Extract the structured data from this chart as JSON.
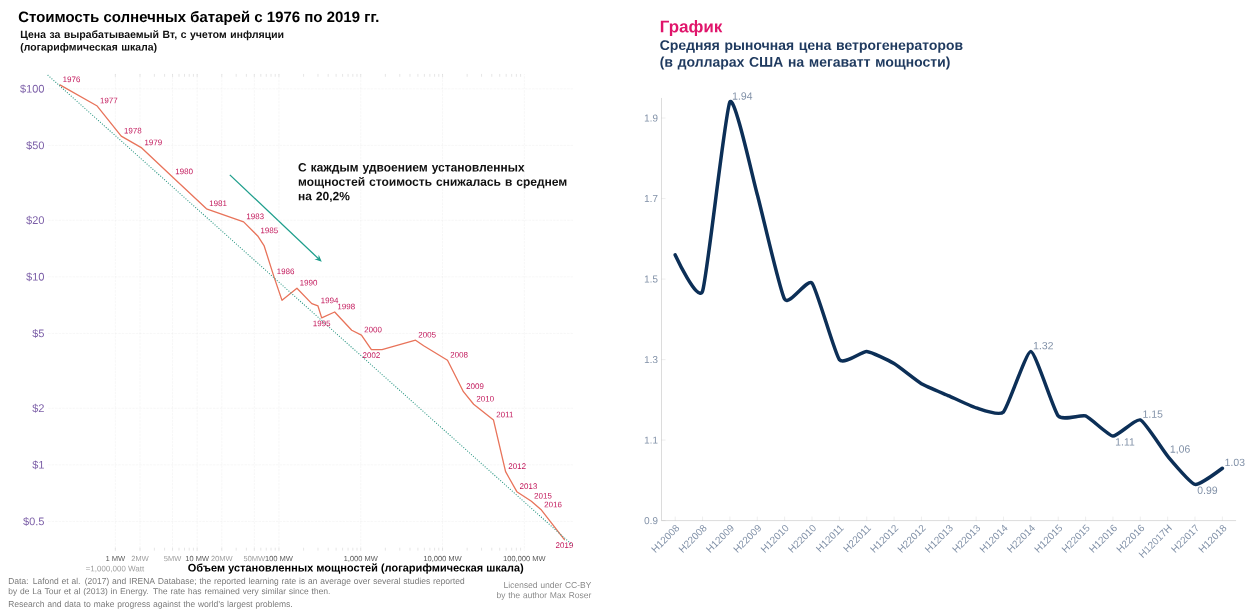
{
  "chart_data": [
    {
      "type": "line",
      "title": "Стоимость солнечных батарей с 1976 по 2019 гг.",
      "subtitle": "Цена за вырабатываемый Вт, с учетом инфляции (логарифмическая шкала)",
      "xlabel": "Объем установленных мощностей (логарифмическая шкала)",
      "log": "xy",
      "grid": true,
      "xlim": [
        0.15,
        400000
      ],
      "ylim": [
        0.35,
        120
      ],
      "xticks": [
        {
          "value": 1,
          "label": "1 MW"
        },
        {
          "value": 2,
          "label": "2MW"
        },
        {
          "value": 5,
          "label": "5MW"
        },
        {
          "value": 10,
          "label": "10 MW"
        },
        {
          "value": 20,
          "label": "20MW"
        },
        {
          "value": 50,
          "label": "50MW"
        },
        {
          "value": 100,
          "label": "100 MW"
        },
        {
          "value": 1000,
          "label": "1,000 MW"
        },
        {
          "value": 10000,
          "label": "10,000 MW"
        },
        {
          "value": 100000,
          "label": "100,000 MW"
        }
      ],
      "yticks": [
        {
          "value": 0.5,
          "label": "$0.5"
        },
        {
          "value": 1,
          "label": "$1"
        },
        {
          "value": 2,
          "label": "$2"
        },
        {
          "value": 5,
          "label": "$5"
        },
        {
          "value": 10,
          "label": "$10"
        },
        {
          "value": 20,
          "label": "$20"
        },
        {
          "value": 50,
          "label": "$50"
        },
        {
          "value": 100,
          "label": "$100"
        }
      ],
      "series": [
        {
          "color": "#e8735a",
          "x": [
            0.21,
            0.6,
            1.18,
            2.1,
            5,
            13,
            37,
            55,
            66,
            87,
            109,
            166,
            252,
            300,
            333,
            480,
            776,
            1020,
            1350,
            1820,
            4680,
            5880,
            11500,
            18000,
            24000,
            42000,
            59000,
            81000,
            122000,
            162000,
            309000
          ],
          "values": [
            105,
            81,
            56,
            48.5,
            34,
            23,
            19.6,
            16.5,
            14.6,
            10,
            7.5,
            8.7,
            7.2,
            7.0,
            6.05,
            6.5,
            5.2,
            4.9,
            4.1,
            4.1,
            4.6,
            4.3,
            3.6,
            2.45,
            2.1,
            1.73,
            0.92,
            0.72,
            0.64,
            0.575,
            0.4
          ]
        },
        {
          "type": "line",
          "color": "#3a9e8c",
          "line_style": "dotted",
          "x": [
            0.15,
            400000
          ],
          "values": [
            118,
            0.37
          ]
        }
      ],
      "annotations": [
        "С каждым удвоением установленных мощностей стоимость снижалась в среднем на 20,2%",
        "=1,000,000 Watt",
        "Data: Lafond et al. (2017) and IRENA Database; the reported learning rate is an average over several studies reported by de La Tour et al (2013) in Energy. The rate has remained very similar since then.",
        "Research and data to make progress against the world’s largest problems.",
        "Licensed under CC-BY by the author Max Roser",
        {
          "text": "1976",
          "x": 0.21,
          "y": 105
        },
        {
          "text": "1977",
          "x": 0.6,
          "y": 81
        },
        {
          "text": "1978",
          "x": 1.18,
          "y": 56
        },
        {
          "text": "1979",
          "x": 2.1,
          "y": 48.5
        },
        {
          "text": "1980",
          "x": 5,
          "y": 34
        },
        {
          "text": "1981",
          "x": 13,
          "y": 23
        },
        {
          "text": "1983",
          "x": 37,
          "y": 19.6
        },
        {
          "text": "1985",
          "x": 55,
          "y": 16.5
        },
        {
          "text": "1986",
          "x": 87,
          "y": 10
        },
        {
          "text": "1990",
          "x": 166,
          "y": 8.7
        },
        {
          "text": "1994",
          "x": 300,
          "y": 7.0
        },
        {
          "text": "1995",
          "x": 333,
          "y": 6.05
        },
        {
          "text": "1998",
          "x": 480,
          "y": 6.5
        },
        {
          "text": "2000",
          "x": 1020,
          "y": 4.9
        },
        {
          "text": "2002",
          "x": 1350,
          "y": 4.1
        },
        {
          "text": "2005",
          "x": 4680,
          "y": 4.6
        },
        {
          "text": "2008",
          "x": 11500,
          "y": 3.6
        },
        {
          "text": "2009",
          "x": 18000,
          "y": 2.45
        },
        {
          "text": "2010",
          "x": 24000,
          "y": 2.1
        },
        {
          "text": "2011",
          "x": 42000,
          "y": 1.73
        },
        {
          "text": "2012",
          "x": 59000,
          "y": 0.92
        },
        {
          "text": "2013",
          "x": 81000,
          "y": 0.72
        },
        {
          "text": "2015",
          "x": 122000,
          "y": 0.64
        },
        {
          "text": "2016",
          "x": 162000,
          "y": 0.575
        },
        {
          "text": "2019",
          "x": 309000,
          "y": 0.4
        }
      ]
    },
    {
      "type": "line",
      "title": "График",
      "subtitle": "Средняя рыночная цена ветрогенераторов (в долларах США на мегаватт мощности)",
      "categories": [
        "H12008",
        "H22008",
        "H12009",
        "H22009",
        "H12010",
        "H22010",
        "H12011",
        "H22011",
        "H12012",
        "H22012",
        "H12013",
        "H22013",
        "H12014",
        "H22014",
        "H12015",
        "H22015",
        "H12016",
        "H22016",
        "H12017H",
        "H22017",
        "H12018"
      ],
      "ylim": [
        0.9,
        1.95
      ],
      "yticks": [
        0.9,
        1.1,
        1.3,
        1.5,
        1.7,
        1.9
      ],
      "series": [
        {
          "color": "#0c2f57",
          "values": [
            1.56,
            1.47,
            1.94,
            1.71,
            1.45,
            1.49,
            1.3,
            1.32,
            1.29,
            1.24,
            1.21,
            1.18,
            1.17,
            1.32,
            1.16,
            1.16,
            1.11,
            1.15,
            1.06,
            0.99,
            1.03
          ],
          "value_labels": [
            null,
            null,
            "1.94",
            null,
            null,
            null,
            null,
            null,
            null,
            null,
            null,
            null,
            null,
            "1.32",
            null,
            null,
            "1.11",
            "1.15",
            "1,06",
            "0.99",
            "1.03"
          ]
        }
      ]
    }
  ]
}
